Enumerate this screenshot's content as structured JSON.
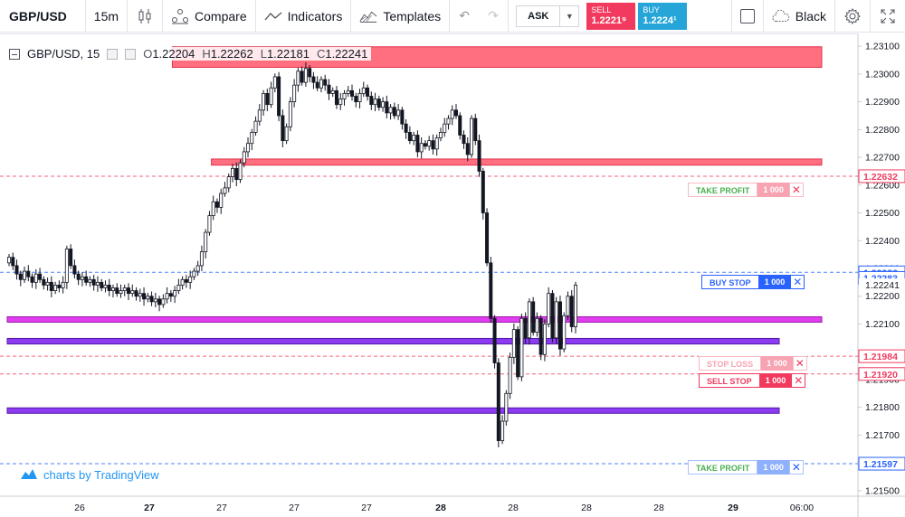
{
  "toolbar": {
    "symbol": "GBP/USD",
    "interval": "15m",
    "compare_label": "Compare",
    "indicators_label": "Indicators",
    "templates_label": "Templates",
    "ask_label": "ASK",
    "sell_label": "SELL",
    "sell_price": "1.2221⁹",
    "buy_label": "BUY",
    "buy_price": "1.2224¹",
    "theme_label": "Black"
  },
  "legend": {
    "symbol_interval": "GBP/USD, 15",
    "open_label": "O",
    "open": "1.22204",
    "high_label": "H",
    "high": "1.22262",
    "low_label": "L",
    "low": "1.22181",
    "close_label": "C",
    "close": "1.22241"
  },
  "branding": "charts by TradingView",
  "orders": {
    "take_profit_1": {
      "label": "TAKE PROFIT",
      "qty": "1 000"
    },
    "buy_stop": {
      "label": "BUY STOP",
      "qty": "1 000"
    },
    "stop_loss": {
      "label": "STOP LOSS",
      "qty": "1 000"
    },
    "sell_stop": {
      "label": "SELL STOP",
      "qty": "1 000"
    },
    "take_profit_2": {
      "label": "TAKE PROFIT",
      "qty": "1 000"
    }
  },
  "chart_data": {
    "type": "candlestick",
    "ylim": [
      1.2148,
      1.2312
    ],
    "y_ticks": [
      "1.23100",
      "1.23000",
      "1.22900",
      "1.22800",
      "1.22700",
      "1.22600",
      "1.22500",
      "1.22400",
      "1.22300",
      "1.22200",
      "1.22100",
      "1.21900",
      "1.21800",
      "1.21700",
      "1.21500"
    ],
    "x_ticks": [
      "26",
      "27",
      "27",
      "27",
      "27",
      "28",
      "28",
      "28",
      "28",
      "29",
      "06:00"
    ],
    "bold_x_ticks": [
      "27",
      "28",
      "29"
    ],
    "price_labels": [
      {
        "value": "1.22632",
        "price": 1.22632,
        "color": "#f23a5e",
        "style": "tag"
      },
      {
        "value": "1.22286",
        "price": 1.22286,
        "color": "#2962ff",
        "style": "tag"
      },
      {
        "value": "1.22283",
        "price": 1.22266,
        "color": "#2962ff",
        "style": "tag"
      },
      {
        "value": "1.22241",
        "price": 1.22241,
        "color": "#131722",
        "style": "plain"
      },
      {
        "value": "1.21984",
        "price": 1.21984,
        "color": "#f23a5e",
        "style": "tag"
      },
      {
        "value": "1.21920",
        "price": 1.2192,
        "color": "#f23a5e",
        "style": "tag"
      },
      {
        "value": "1.21597",
        "price": 1.21597,
        "color": "#2962ff",
        "style": "tag"
      }
    ],
    "order_lines": [
      {
        "name": "take-profit-upper",
        "price": 1.22632,
        "color": "#f23a5e"
      },
      {
        "name": "buy-stop",
        "price": 1.22286,
        "color": "#2962ff"
      },
      {
        "name": "stop-loss",
        "price": 1.21984,
        "color": "#f23a5e"
      },
      {
        "name": "sell-stop",
        "price": 1.2192,
        "color": "#f23a5e"
      },
      {
        "name": "take-profit-lower",
        "price": 1.21597,
        "color": "#2962ff"
      }
    ],
    "zones": [
      {
        "name": "supply-zone-top",
        "y_top": 1.23098,
        "y_bottom": 1.23024,
        "start_day": 27.28,
        "end_day": "right",
        "fill": "#ff6f7f",
        "stroke": "#e0324b"
      },
      {
        "name": "supply-zone-mid",
        "y_top": 1.22694,
        "y_bottom": 1.22672,
        "start_day": 27.82,
        "end_day": "right",
        "fill": "#ff6f7f",
        "stroke": "#e0324b"
      },
      {
        "name": "demand-zone-1",
        "y_top": 1.22126,
        "y_bottom": 1.22108,
        "start_day": "left",
        "end_day": "right",
        "fill": "#e03cf0",
        "stroke": "#9a1aa8"
      },
      {
        "name": "demand-zone-2",
        "y_top": 1.22048,
        "y_bottom": 1.22028,
        "start_day": "left",
        "end_day": "29.7",
        "fill": "#8b3cf0",
        "stroke": "#5418a8"
      },
      {
        "name": "demand-zone-3",
        "y_top": 1.21798,
        "y_bottom": 1.21784,
        "start_day": "left",
        "end_day": "29.7",
        "fill": "#8b3cf0",
        "stroke": "#5418a8"
      }
    ],
    "closes": [
      1.2234,
      1.2231,
      1.2228,
      1.2226,
      1.2229,
      1.2227,
      1.2225,
      1.2228,
      1.2226,
      1.2224,
      1.2225,
      1.2222,
      1.2224,
      1.2223,
      1.2225,
      1.2237,
      1.2231,
      1.2228,
      1.2226,
      1.2227,
      1.2225,
      1.2226,
      1.2224,
      1.2225,
      1.2223,
      1.2224,
      1.2222,
      1.2223,
      1.2221,
      1.2222,
      1.2223,
      1.2221,
      1.2222,
      1.222,
      1.2221,
      1.2219,
      1.222,
      1.2218,
      1.2219,
      1.2217,
      1.2219,
      1.2221,
      1.222,
      1.2222,
      1.2224,
      1.2226,
      1.2225,
      1.2227,
      1.2229,
      1.2231,
      1.2236,
      1.2243,
      1.2249,
      1.2254,
      1.2252,
      1.2257,
      1.2259,
      1.2263,
      1.2266,
      1.2262,
      1.2268,
      1.2272,
      1.2275,
      1.2279,
      1.2283,
      1.2287,
      1.2293,
      1.2289,
      1.2295,
      1.2299,
      1.2285,
      1.2276,
      1.2281,
      1.229,
      1.2296,
      1.2301,
      1.2297,
      1.2302,
      1.2299,
      1.2297,
      1.2295,
      1.2298,
      1.2296,
      1.2293,
      1.2294,
      1.2289,
      1.2291,
      1.2293,
      1.2294,
      1.2292,
      1.229,
      1.2293,
      1.2295,
      1.2292,
      1.2289,
      1.2291,
      1.2288,
      1.229,
      1.2286,
      1.2288,
      1.2285,
      1.2287,
      1.2282,
      1.2279,
      1.2276,
      1.2278,
      1.2272,
      1.2275,
      1.2274,
      1.2276,
      1.2273,
      1.2277,
      1.2279,
      1.2282,
      1.2284,
      1.2287,
      1.2285,
      1.2278,
      1.2275,
      1.2271,
      1.2284,
      1.2276,
      1.2265,
      1.225,
      1.2232,
      1.2212,
      1.2196,
      1.2168,
      1.2175,
      1.2185,
      1.2198,
      1.2208,
      1.2191,
      1.2212,
      1.2205,
      1.2218,
      1.2207,
      1.2212,
      1.2199,
      1.221,
      1.2221,
      1.2205,
      1.2218,
      1.2201,
      1.2213,
      1.222,
      1.2209,
      1.2224
    ]
  }
}
